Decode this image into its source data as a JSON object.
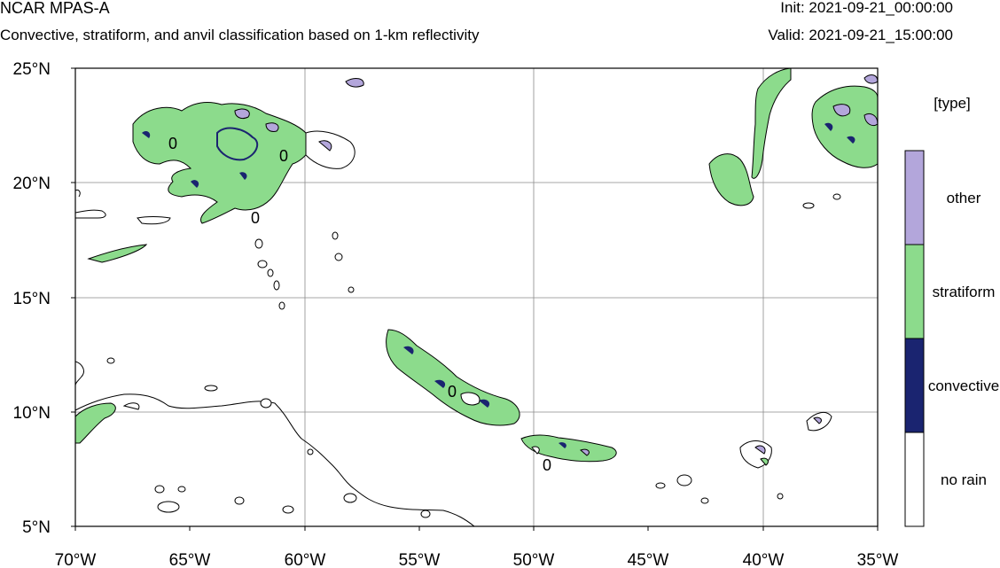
{
  "header": {
    "title": "NCAR MPAS-A",
    "subtitle": "Convective, stratiform, and anvil classification based on 1-km reflectivity",
    "init": "Init: 2021-09-21_00:00:00",
    "valid": "Valid: 2021-09-21_15:00:00"
  },
  "map": {
    "lon_labels": [
      "70°W",
      "65°W",
      "60°W",
      "55°W",
      "50°W",
      "45°W",
      "40°W",
      "35°W"
    ],
    "lat_labels": [
      "25°N",
      "20°N",
      "15°N",
      "10°N",
      "5°N"
    ],
    "lon_range": [
      -70,
      -35
    ],
    "lat_range": [
      5,
      25
    ],
    "grid": true,
    "contour_labels": [
      "0",
      "0",
      "0",
      "0",
      "0"
    ]
  },
  "legend": {
    "title": "[type]",
    "items": [
      {
        "label": "other",
        "color": "#b3a6db"
      },
      {
        "label": "stratiform",
        "color": "#8cdb8c"
      },
      {
        "label": "convective",
        "color": "#1a2470"
      },
      {
        "label": "no rain",
        "color": "#ffffff"
      }
    ]
  }
}
